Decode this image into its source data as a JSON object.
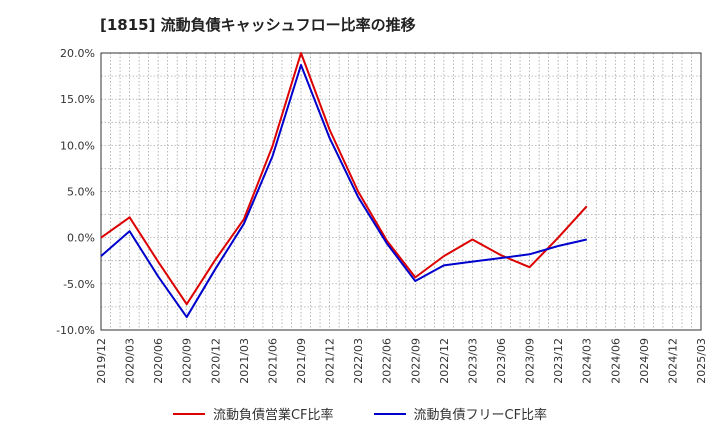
{
  "chart_data": {
    "type": "line",
    "title": "[1815]  流動負債キャッシュフロー比率の推移",
    "xlabel": "",
    "ylabel": "",
    "ylim": [
      -10,
      20
    ],
    "yticks": [
      "20.0%",
      "15.0%",
      "10.0%",
      "5.0%",
      "0.0%",
      "-5.0%",
      "-10.0%"
    ],
    "ytick_values": [
      20,
      15,
      10,
      5,
      0,
      -5,
      -10
    ],
    "categories": [
      "2019/12",
      "2020/03",
      "2020/06",
      "2020/09",
      "2020/12",
      "2021/03",
      "2021/06",
      "2021/09",
      "2021/12",
      "2022/03",
      "2022/06",
      "2022/09",
      "2022/12",
      "2023/03",
      "2023/06",
      "2023/09",
      "2023/12",
      "2024/03",
      "2024/06",
      "2024/09",
      "2024/12",
      "2025/03"
    ],
    "grid": true,
    "legend_position": "bottom",
    "series": [
      {
        "name": "流動負債営業CF比率",
        "color": "#dd0000",
        "values": [
          0.0,
          2.2,
          -2.6,
          -7.2,
          -2.4,
          2.0,
          9.9,
          20.0,
          11.7,
          5.0,
          -0.3,
          -4.3,
          -2.0,
          -0.2,
          -1.9,
          -3.2,
          0.0,
          3.4,
          null,
          null,
          null,
          null
        ]
      },
      {
        "name": "流動負債フリーCF比率",
        "color": "#0000cc",
        "values": [
          -2.0,
          0.7,
          -4.2,
          -8.6,
          -3.4,
          1.5,
          8.8,
          18.7,
          10.8,
          4.4,
          -0.6,
          -4.7,
          -3.0,
          -2.6,
          -2.2,
          -1.8,
          -0.9,
          -0.2,
          null,
          null,
          null,
          null
        ]
      }
    ]
  }
}
